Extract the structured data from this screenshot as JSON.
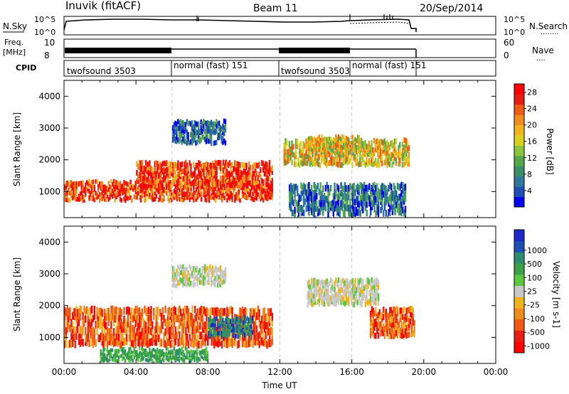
{
  "header": {
    "station": "Inuvik (fitACF)",
    "beam": "Beam 11",
    "date": "20/Sep/2014"
  },
  "panels": {
    "nsky": {
      "left_label": "N.Sky",
      "left_ticks": [
        "10^5",
        "10^0"
      ],
      "right_ticks": [
        "10^5",
        "10^0"
      ],
      "right_label": "N.Search",
      "right_line": "........"
    },
    "freq": {
      "left_label_1": "Freq.",
      "left_label_2": "[MHz]",
      "left_ticks": [
        "10",
        "8"
      ],
      "right_ticks": [
        "60",
        "0"
      ],
      "right_label": "Nave",
      "right_line": "...."
    },
    "cpid": {
      "label": "CPID",
      "segments": [
        "twofsound 3503",
        "normal (fast) 151",
        "twofsound 3503",
        "normal (fast) 151"
      ]
    }
  },
  "chart_data": [
    {
      "type": "heatmap",
      "title": "",
      "xlabel": "Time UT",
      "ylabel": "Slant Range [km]",
      "x_ticks": [
        "00:00",
        "04:00",
        "08:00",
        "12:00",
        "16:00",
        "20:00",
        "00:00"
      ],
      "xlim_hours": [
        0,
        24
      ],
      "y_ticks": [
        1000,
        2000,
        3000,
        4000
      ],
      "ylim_km": [
        180,
        4500
      ],
      "colorbar": {
        "label": "Power [dB]",
        "ticks": [
          4,
          8,
          12,
          16,
          20,
          24,
          28
        ],
        "range": [
          0,
          30
        ],
        "colors": [
          "#0000f0",
          "#1e4fb4",
          "#2e78a0",
          "#3a8f6a",
          "#55a84a",
          "#8cc43c",
          "#d7d21e",
          "#f0b41e",
          "#f08c1e",
          "#f05a14",
          "#e61e14",
          "#ff0000"
        ]
      },
      "echo_regions": [
        {
          "t0": 0.0,
          "t1": 11.6,
          "r0": 700,
          "r1": 1300,
          "level": "high"
        },
        {
          "t0": 4.0,
          "t1": 11.6,
          "r0": 1100,
          "r1": 1900,
          "level": "high"
        },
        {
          "t0": 12.2,
          "t1": 19.2,
          "r0": 1800,
          "r1": 2600,
          "level": "medium"
        },
        {
          "t0": 13.5,
          "t1": 16.5,
          "r0": 2200,
          "r1": 2700,
          "level": "medium"
        },
        {
          "t0": 6.0,
          "t1": 9.0,
          "r0": 2500,
          "r1": 3200,
          "level": "low"
        },
        {
          "t0": 12.5,
          "t1": 19.0,
          "r0": 200,
          "r1": 1200,
          "level": "low"
        }
      ],
      "dashed_times": [
        6.0,
        12.0,
        16.0
      ]
    },
    {
      "type": "heatmap",
      "title": "",
      "xlabel": "Time UT",
      "ylabel": "Slant Range [km]",
      "x_ticks": [
        "00:00",
        "04:00",
        "08:00",
        "12:00",
        "16:00",
        "20:00",
        "00:00"
      ],
      "xlim_hours": [
        0,
        24
      ],
      "y_ticks": [
        1000,
        2000,
        3000,
        4000
      ],
      "ylim_km": [
        180,
        4500
      ],
      "colorbar": {
        "label": "Velocity [m s-1]",
        "ticks": [
          "1000",
          "500",
          "100",
          "25",
          "-25",
          "-100",
          "-500",
          "-1000"
        ],
        "colors": [
          "#1e28c8",
          "#1e50b4",
          "#2e8c6e",
          "#3ca046",
          "#5ac83c",
          "#c8c8c8",
          "#f0b41e",
          "#f08c1e",
          "#f05a14",
          "#e61e14",
          "#ff0000"
        ]
      },
      "echo_regions": [
        {
          "t0": 0.0,
          "t1": 11.6,
          "r0": 700,
          "r1": 1900,
          "level": "negative"
        },
        {
          "t0": 8.0,
          "t1": 10.5,
          "r0": 1000,
          "r1": 1600,
          "level": "positive"
        },
        {
          "t0": 13.5,
          "t1": 17.5,
          "r0": 2000,
          "r1": 2800,
          "level": "zero"
        },
        {
          "t0": 6.0,
          "t1": 9.0,
          "r0": 2600,
          "r1": 3200,
          "level": "zero"
        },
        {
          "t0": 17.0,
          "t1": 19.5,
          "r0": 1000,
          "r1": 1900,
          "level": "negative"
        },
        {
          "t0": 2.0,
          "t1": 8.0,
          "r0": 200,
          "r1": 600,
          "level": "positive_small"
        }
      ],
      "dashed_times": [
        6.0,
        12.0,
        16.0
      ]
    }
  ]
}
